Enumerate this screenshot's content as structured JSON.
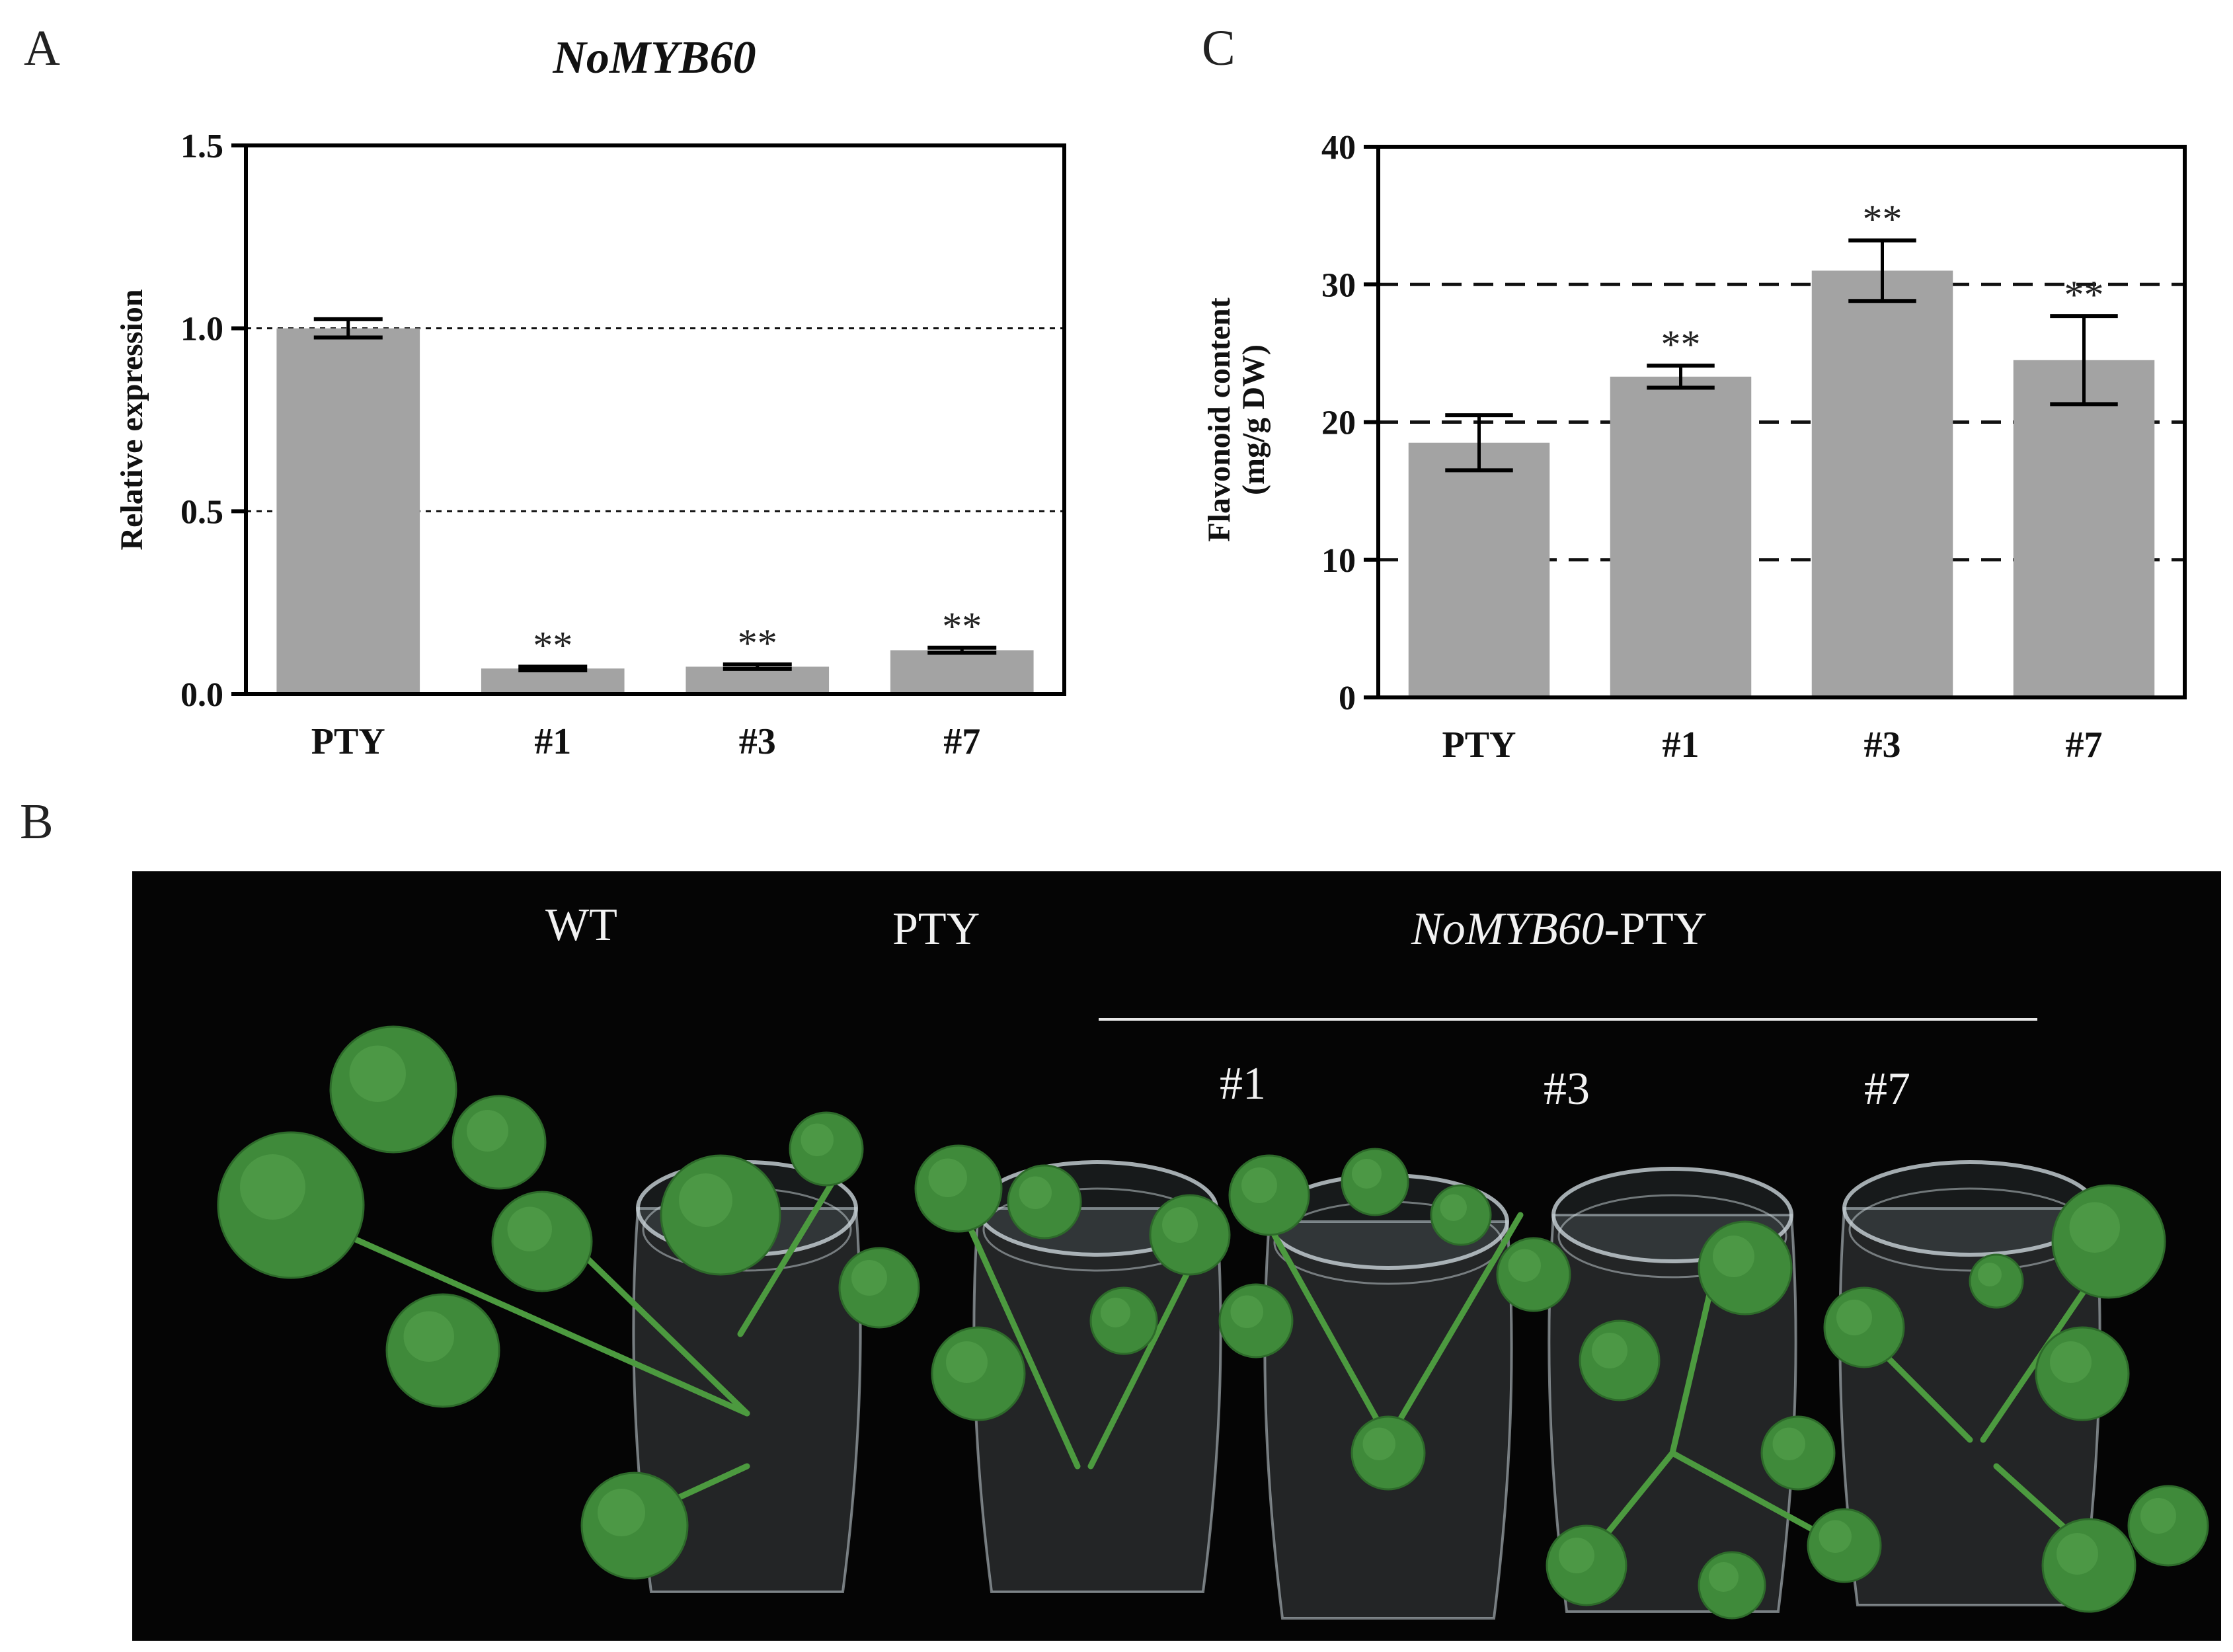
{
  "panels": {
    "a_letter": "A",
    "b_letter": "B",
    "c_letter": "C"
  },
  "chart_data": [
    {
      "type": "bar",
      "title": "NoMYB60",
      "xlabel": "",
      "ylabel": "Relative expression",
      "categories": [
        "PTY",
        "#1",
        "#3",
        "#7"
      ],
      "values": [
        1.0,
        0.07,
        0.075,
        0.12
      ],
      "errors": [
        0.025,
        0.005,
        0.006,
        0.007
      ],
      "annotations": [
        "",
        "**",
        "**",
        "**"
      ],
      "ylim": [
        0,
        1.5
      ],
      "yticks": [
        0.0,
        0.5,
        1.0,
        1.5
      ],
      "ytick_labels": [
        "0.0",
        "0.5",
        "1.0",
        "1.5"
      ],
      "grid": [
        0.5,
        1.0
      ],
      "bar_color": "#a3a3a3"
    },
    {
      "type": "bar",
      "title": "",
      "xlabel": "",
      "ylabel": "Flavonoid content",
      "ylabel_line2": "(mg/g DW)",
      "categories": [
        "PTY",
        "#1",
        "#3",
        "#7"
      ],
      "values": [
        18.5,
        23.3,
        31.0,
        24.5
      ],
      "errors": [
        2.0,
        0.8,
        2.2,
        3.2
      ],
      "annotations": [
        "",
        "**",
        "**",
        "**"
      ],
      "ylim": [
        0,
        40
      ],
      "yticks": [
        0,
        10,
        20,
        30,
        40
      ],
      "ytick_labels": [
        "0",
        "10",
        "20",
        "30",
        "40"
      ],
      "grid": [
        10,
        20,
        30
      ],
      "bar_color": "#a3a3a3"
    }
  ],
  "photo": {
    "labels": {
      "wt": "WT",
      "pty": "PTY",
      "group_italic": "NoMYB60",
      "group_suffix": "-PTY",
      "line1": "#1",
      "line3": "#3",
      "line7": "#7"
    },
    "colors": {
      "background": "#050505",
      "leaf": "#3f8a3a",
      "jar": "#c9d3d8"
    }
  }
}
